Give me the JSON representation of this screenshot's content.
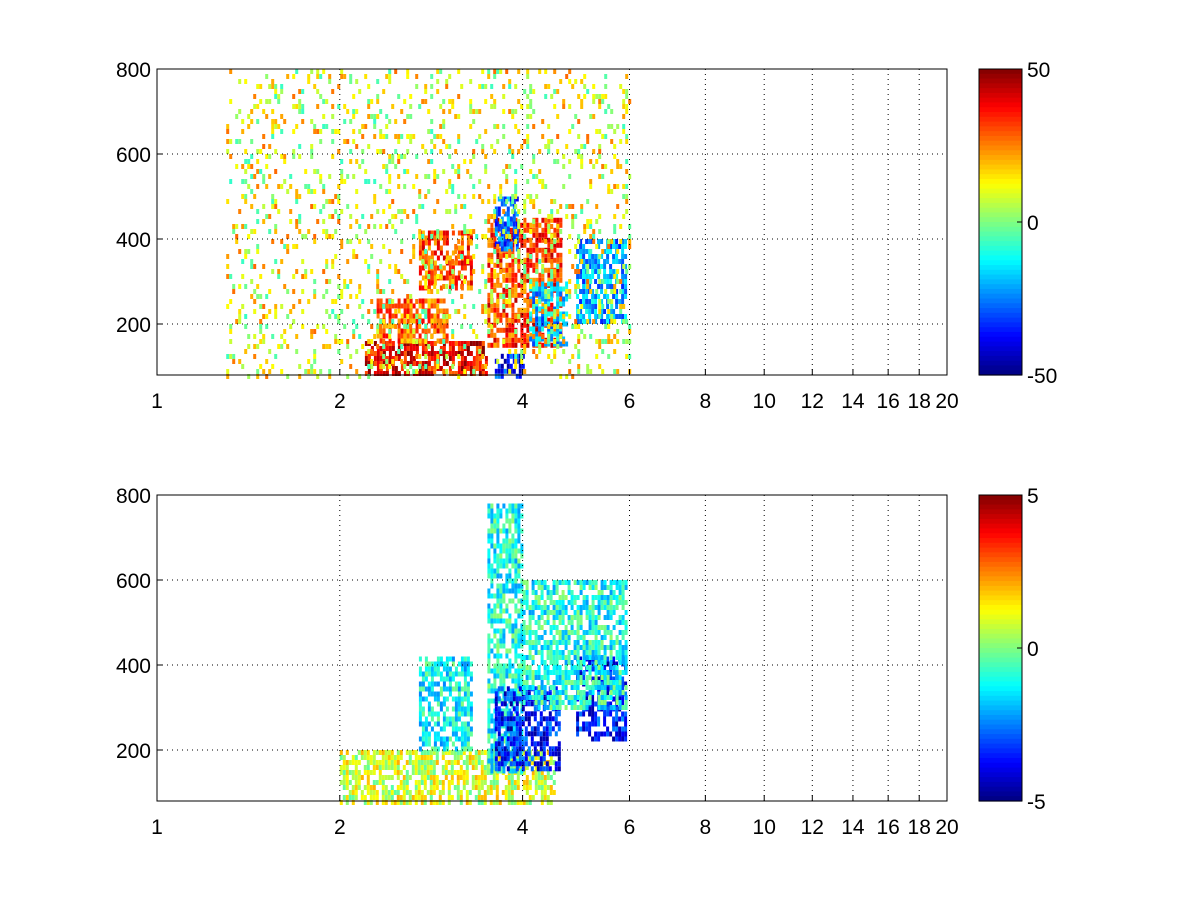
{
  "chart_data": [
    {
      "type": "heatmap",
      "title": "",
      "xlabel": "",
      "ylabel": "",
      "xlim": [
        1,
        20
      ],
      "ylim": [
        80,
        800
      ],
      "x_ticks": [
        1,
        2,
        4,
        6,
        8,
        10,
        12,
        14,
        16,
        18,
        20
      ],
      "x_tick_labels": [
        "1",
        "2",
        "4",
        "6",
        "8",
        "10",
        "12",
        "14",
        "16",
        "18",
        "20"
      ],
      "y_ticks": [
        200,
        400,
        600,
        800
      ],
      "y_tick_labels": [
        "200",
        "400",
        "600",
        "800"
      ],
      "x_scale": "log",
      "grid": "dotted",
      "colormap": "jet",
      "color_range": [
        -50,
        50
      ],
      "colorbar_ticks": [
        50,
        0,
        -50
      ],
      "colorbar_tick_labels": [
        "50",
        "0",
        "-50"
      ],
      "regions": [
        {
          "x": [
            2.2,
            3.5
          ],
          "y": [
            80,
            160
          ],
          "value": 38
        },
        {
          "x": [
            2.3,
            3.0
          ],
          "y": [
            160,
            260
          ],
          "value": 28
        },
        {
          "x": [
            2.7,
            3.3
          ],
          "y": [
            280,
            420
          ],
          "value": 30
        },
        {
          "x": [
            3.6,
            4.0
          ],
          "y": [
            80,
            130
          ],
          "value": -35
        },
        {
          "x": [
            3.5,
            4.6
          ],
          "y": [
            150,
            450
          ],
          "value": 32
        },
        {
          "x": [
            3.6,
            3.9
          ],
          "y": [
            380,
            500
          ],
          "value": -28
        },
        {
          "x": [
            4.1,
            4.7
          ],
          "y": [
            150,
            300
          ],
          "value": -20
        },
        {
          "x": [
            4.9,
            5.9
          ],
          "y": [
            200,
            400
          ],
          "value": -22
        },
        {
          "x": [
            1.3,
            6.0
          ],
          "y": [
            80,
            800
          ],
          "value": 10
        }
      ]
    },
    {
      "type": "heatmap",
      "title": "",
      "xlabel": "",
      "ylabel": "",
      "xlim": [
        1,
        20
      ],
      "ylim": [
        80,
        800
      ],
      "x_ticks": [
        1,
        2,
        4,
        6,
        8,
        10,
        12,
        14,
        16,
        18,
        20
      ],
      "x_tick_labels": [
        "1",
        "2",
        "4",
        "6",
        "8",
        "10",
        "12",
        "14",
        "16",
        "18",
        "20"
      ],
      "y_ticks": [
        200,
        400,
        600,
        800
      ],
      "y_tick_labels": [
        "200",
        "400",
        "600",
        "800"
      ],
      "x_scale": "log",
      "grid": "dotted",
      "colormap": "jet",
      "color_range": [
        -5,
        5
      ],
      "colorbar_ticks": [
        5,
        0,
        -5
      ],
      "colorbar_tick_labels": [
        "5",
        "0",
        "-5"
      ],
      "regions": [
        {
          "x": [
            2.0,
            4.5
          ],
          "y": [
            80,
            200
          ],
          "value": 0.8
        },
        {
          "x": [
            2.7,
            3.3
          ],
          "y": [
            200,
            420
          ],
          "value": -1.2
        },
        {
          "x": [
            3.5,
            4.0
          ],
          "y": [
            150,
            780
          ],
          "value": -1.0
        },
        {
          "x": [
            3.6,
            4.6
          ],
          "y": [
            150,
            350
          ],
          "value": -3.5
        },
        {
          "x": [
            4.9,
            5.9
          ],
          "y": [
            220,
            420
          ],
          "value": -3.5
        },
        {
          "x": [
            4.0,
            5.9
          ],
          "y": [
            300,
            600
          ],
          "value": -1.0
        }
      ]
    }
  ]
}
